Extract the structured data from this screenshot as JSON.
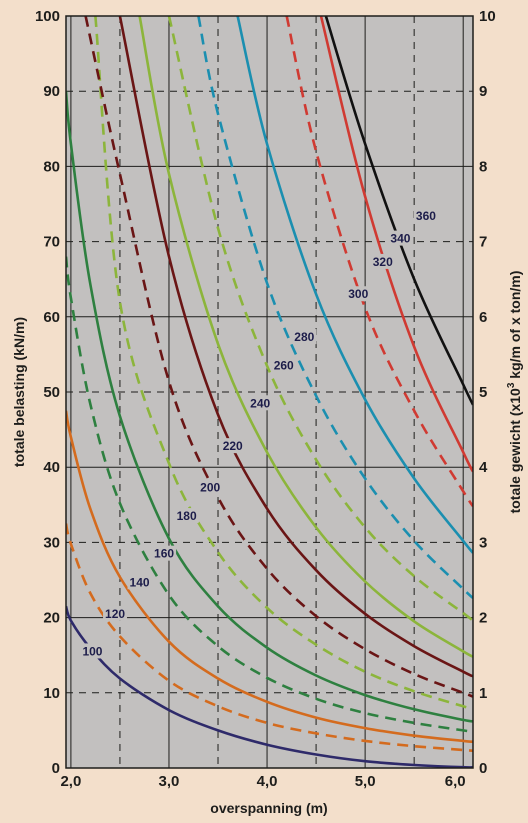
{
  "chart_data": {
    "type": "line",
    "xlabel": "overspanning (m)",
    "ylabel": "totale belasting (kN/m)",
    "y2label_main": "totale gewicht (x10",
    "y2label_sup": "3",
    "y2label_tail": " kg/m of x ton/m)",
    "xlim": [
      1.95,
      6.1
    ],
    "ylim": [
      0,
      100
    ],
    "y2lim": [
      0,
      10
    ],
    "x_ticks": [
      2.0,
      3.0,
      4.0,
      5.0,
      6.0
    ],
    "x_tick_labels": [
      "2,0",
      "3,0",
      "4,0",
      "5,0",
      "6,0"
    ],
    "x_minor_dashed": [
      2.5,
      3.5,
      4.5,
      5.5
    ],
    "y_ticks": [
      0,
      10,
      20,
      30,
      40,
      50,
      60,
      70,
      80,
      90,
      100
    ],
    "y_tick_labels": [
      "0",
      "10",
      "20",
      "30",
      "40",
      "50",
      "60",
      "70",
      "80",
      "90",
      "100"
    ],
    "y2_tick_labels": [
      "0",
      "1",
      "2",
      "3",
      "4",
      "5",
      "6",
      "7",
      "8",
      "9",
      "10"
    ],
    "grid": true,
    "plot_background": "#c2c0bf",
    "page_background": "#f3dfcb",
    "series": [
      {
        "label": "100",
        "color": "#2e2a6a",
        "dashed": false,
        "x": [
          1.95,
          2.0,
          2.2,
          2.5,
          3.0,
          3.5,
          4.0,
          4.5,
          5.0,
          5.5,
          6.0,
          6.1
        ],
        "values": [
          21.5,
          19.6,
          15.9,
          11.9,
          7.7,
          5.0,
          3.1,
          1.8,
          0.9,
          0.4,
          0.1,
          0.1
        ],
        "label_x": 2.22,
        "label_y": 15.5
      },
      {
        "label": "120",
        "color": "#d46b1e",
        "dashed": true,
        "x": [
          1.95,
          2.0,
          2.2,
          2.5,
          3.0,
          3.5,
          4.0,
          4.5,
          5.0,
          5.5,
          6.0,
          6.1
        ],
        "values": [
          32.5,
          29.8,
          23.2,
          17.5,
          11.6,
          8.2,
          6.0,
          4.6,
          3.6,
          2.9,
          2.4,
          2.3
        ],
        "label_x": 2.45,
        "label_y": 20.5
      },
      {
        "label": "140",
        "color": "#d46b1e",
        "dashed": false,
        "x": [
          1.95,
          2.0,
          2.2,
          2.5,
          3.0,
          3.5,
          4.0,
          4.5,
          5.0,
          5.5,
          6.0,
          6.1
        ],
        "values": [
          47.5,
          44.0,
          34.4,
          25.4,
          16.8,
          11.9,
          8.8,
          6.7,
          5.3,
          4.3,
          3.6,
          3.5
        ],
        "label_x": 2.7,
        "label_y": 24.7
      },
      {
        "label": "160",
        "color": "#2e8040",
        "dashed": true,
        "x": [
          1.95,
          2.0,
          2.2,
          2.5,
          3.0,
          3.5,
          4.0,
          4.5,
          5.0,
          5.5,
          6.0,
          6.1
        ],
        "values": [
          68.0,
          62.5,
          48.3,
          35.2,
          23.0,
          16.2,
          12.0,
          9.2,
          7.3,
          6.0,
          5.0,
          4.8
        ],
        "label_x": 2.95,
        "label_y": 28.5
      },
      {
        "label": "180",
        "color": "#2e8040",
        "dashed": false,
        "x": [
          1.95,
          2.0,
          2.2,
          2.5,
          3.0,
          3.5,
          4.0,
          4.5,
          5.0,
          5.5,
          6.0,
          6.1
        ],
        "values": [
          90.0,
          83.0,
          64.2,
          46.8,
          30.5,
          21.5,
          16.0,
          12.3,
          9.7,
          7.8,
          6.4,
          6.2
        ],
        "label_x": 3.18,
        "label_y": 33.5
      },
      {
        "label": "200",
        "color": "#8cb53b",
        "dashed": true,
        "x": [
          2.25,
          2.5,
          3.0,
          3.5,
          4.0,
          4.5,
          5.0,
          5.5,
          6.0,
          6.1
        ],
        "values": [
          100,
          62.0,
          40.5,
          28.7,
          21.3,
          16.4,
          12.8,
          10.2,
          8.2,
          7.8
        ],
        "label_x": 3.42,
        "label_y": 37.3
      },
      {
        "label": "220",
        "color": "#6a1515",
        "dashed": true,
        "x": [
          2.15,
          2.5,
          3.0,
          3.5,
          4.0,
          4.5,
          5.0,
          5.5,
          6.0,
          6.1
        ],
        "values": [
          100,
          79.0,
          51.4,
          36.0,
          26.5,
          20.2,
          15.8,
          12.5,
          10.0,
          9.5
        ],
        "label_x": 3.65,
        "label_y": 42.8
      },
      {
        "label": "240",
        "color": "#6a1515",
        "dashed": false,
        "x": [
          2.5,
          3.0,
          3.5,
          4.0,
          4.5,
          5.0,
          5.5,
          6.0,
          6.1
        ],
        "values": [
          100,
          68.0,
          47.0,
          34.5,
          26.3,
          20.5,
          16.2,
          12.8,
          12.2
        ],
        "label_x": 3.93,
        "label_y": 48.5
      },
      {
        "label": "260",
        "color": "#8cb53b",
        "dashed": false,
        "x": [
          2.7,
          3.0,
          3.5,
          4.0,
          4.5,
          5.0,
          5.5,
          6.0,
          6.1
        ],
        "values": [
          100,
          79.0,
          56.4,
          42.0,
          32.0,
          24.8,
          19.5,
          15.5,
          14.8
        ],
        "label_x": 4.17,
        "label_y": 53.5
      },
      {
        "label": "280",
        "color": "#8cb53b",
        "dashed": true,
        "x": [
          3.0,
          3.5,
          4.0,
          4.5,
          5.0,
          5.5,
          6.0,
          6.1
        ],
        "values": [
          100,
          71.8,
          53.5,
          41.0,
          32.0,
          25.5,
          20.6,
          19.6
        ],
        "label_x": 4.38,
        "label_y": 57.3
      },
      {
        "label": "300",
        "color": "#1b8fb0",
        "dashed": true,
        "x": [
          3.3,
          3.5,
          4.0,
          4.5,
          5.0,
          5.5,
          6.0,
          6.1
        ],
        "values": [
          100,
          87.0,
          64.5,
          49.5,
          38.5,
          30.2,
          23.8,
          22.6
        ],
        "label_x": 4.93,
        "label_y": 63.0
      },
      {
        "label": "320",
        "color": "#1b8fb0",
        "dashed": false,
        "x": [
          3.7,
          4.0,
          4.5,
          5.0,
          5.5,
          6.0,
          6.1
        ],
        "values": [
          100,
          83.0,
          63.0,
          49.0,
          38.5,
          30.2,
          28.6
        ],
        "label_x": 5.18,
        "label_y": 67.3
      },
      {
        "label": "340",
        "color": "#d03a32",
        "dashed": true,
        "x": [
          4.2,
          4.5,
          5.0,
          5.5,
          6.0,
          6.1
        ],
        "values": [
          100,
          82.0,
          61.2,
          47.5,
          36.8,
          34.8
        ],
        "label_x": 5.36,
        "label_y": 70.4
      },
      {
        "label": "360",
        "color": "#d03a32",
        "dashed": false,
        "x": [
          4.55,
          5.0,
          5.5,
          6.0,
          6.1
        ],
        "values": [
          100,
          76.0,
          56.0,
          42.0,
          39.4
        ],
        "label_x": 5.62,
        "label_y": 73.4
      },
      {
        "label": "",
        "color": "#111111",
        "dashed": false,
        "x": [
          4.6,
          5.0,
          5.5,
          6.0,
          6.1
        ],
        "values": [
          100,
          83.0,
          65.0,
          51.0,
          48.3
        ]
      }
    ]
  }
}
